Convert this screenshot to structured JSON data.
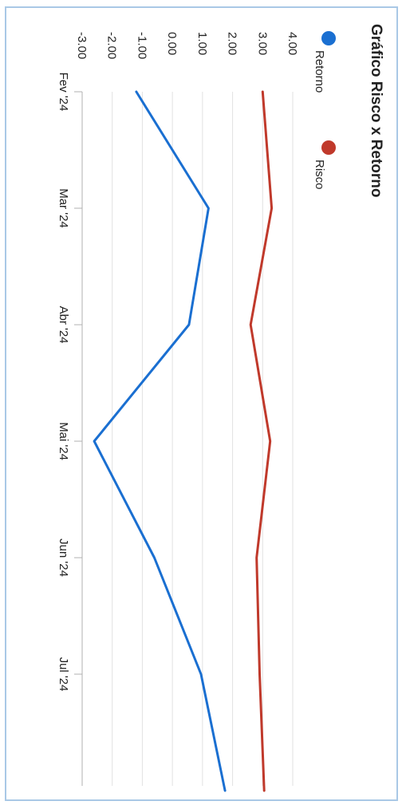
{
  "chart_data": {
    "type": "line",
    "title": "Gráfico Risco x Retorno",
    "x": [
      "Fev '24",
      "Mar '24",
      "Abr '24",
      "Mai '24",
      "Jun '24",
      "Jul '24",
      ""
    ],
    "x_tick_labels": [
      "Fev '24",
      "Mar '24",
      "Abr '24",
      "Mai '24",
      "Jun '24",
      "Jul '24"
    ],
    "y_tick_labels": [
      "4.00",
      "3.00",
      "2.00",
      "1.00",
      "0.00",
      "-1.00",
      "-2.00",
      "-3.00"
    ],
    "ylim": [
      -3.0,
      4.0
    ],
    "grid": true,
    "legend": "top-left",
    "series": [
      {
        "name": "Retorno",
        "color": "#1a6fd1",
        "values": [
          -1.2,
          1.2,
          0.55,
          -2.6,
          -0.6,
          0.95,
          1.75
        ]
      },
      {
        "name": "Risco",
        "color": "#c0392b",
        "values": [
          3.0,
          3.3,
          2.6,
          3.25,
          2.8,
          2.9,
          3.05
        ]
      }
    ]
  }
}
